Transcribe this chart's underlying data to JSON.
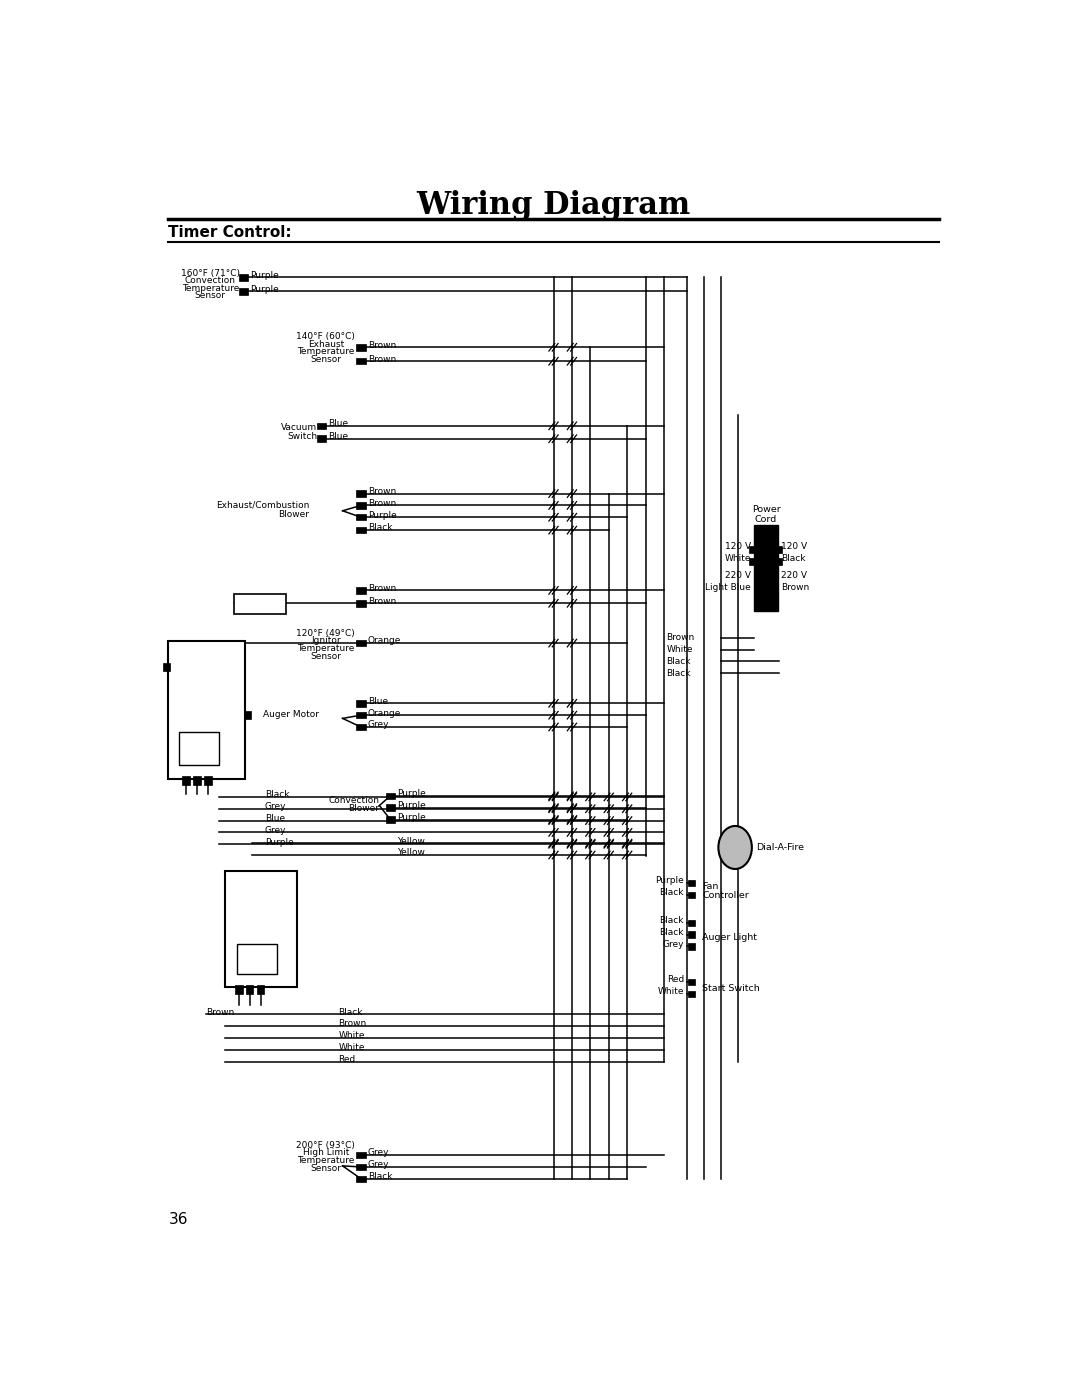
{
  "title": "Wiring Diagram",
  "subtitle": "Timer Control:",
  "bg_color": "#ffffff",
  "title_fontsize": 22,
  "subtitle_fontsize": 11,
  "page_number": "36"
}
